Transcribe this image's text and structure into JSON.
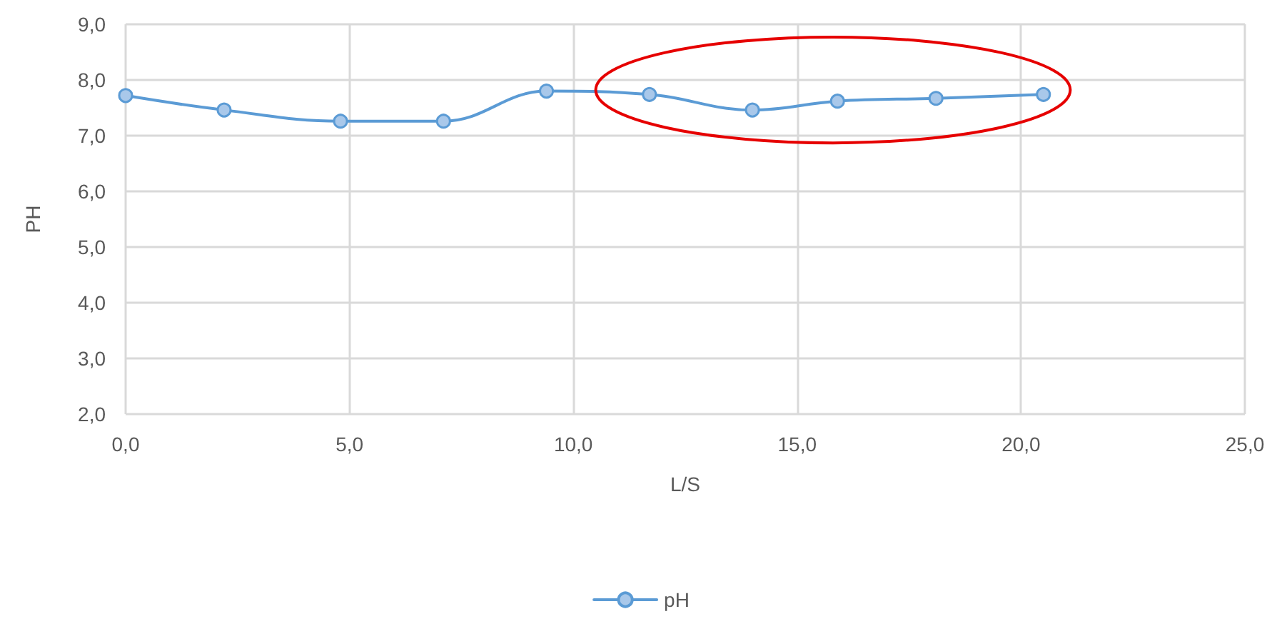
{
  "chart_data": {
    "type": "line",
    "xlabel": "L/S",
    "ylabel": "PH",
    "x": [
      0.0,
      2.2,
      4.8,
      7.1,
      9.4,
      11.7,
      14.0,
      15.9,
      18.1,
      20.5
    ],
    "series": [
      {
        "name": "pH",
        "color": "#5b9bd5",
        "values": [
          7.72,
          7.46,
          7.26,
          7.26,
          7.8,
          7.74,
          7.46,
          7.62,
          7.67,
          7.74
        ]
      }
    ],
    "xlim": [
      0,
      25
    ],
    "xticks": [
      {
        "value": 0,
        "label": "0,0"
      },
      {
        "value": 5,
        "label": "5,0"
      },
      {
        "value": 10,
        "label": "10,0"
      },
      {
        "value": 15,
        "label": "15,0"
      },
      {
        "value": 20,
        "label": "20,0"
      },
      {
        "value": 25,
        "label": "25,0"
      }
    ],
    "ylim": [
      2,
      9
    ],
    "yticks": [
      {
        "value": 2,
        "label": "2,0"
      },
      {
        "value": 3,
        "label": "3,0"
      },
      {
        "value": 4,
        "label": "4,0"
      },
      {
        "value": 5,
        "label": "5,0"
      },
      {
        "value": 6,
        "label": "6,0"
      },
      {
        "value": 7,
        "label": "7,0"
      },
      {
        "value": 8,
        "label": "8,0"
      },
      {
        "value": 9,
        "label": "9,0"
      }
    ],
    "grid": true,
    "legend": "bottom",
    "marker": "circle",
    "line_style": "solid"
  }
}
